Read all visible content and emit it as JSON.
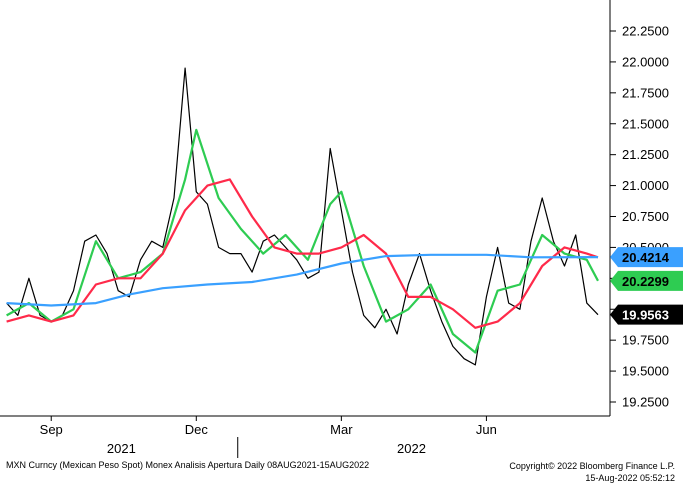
{
  "chart_data": {
    "type": "line",
    "title": "",
    "ylim": [
      19.2,
      22.4
    ],
    "yticks": [
      "22.2500",
      "22.0000",
      "21.7500",
      "21.5000",
      "21.2500",
      "21.0000",
      "20.7500",
      "20.5000",
      "20.2500",
      "20.0000",
      "19.7500",
      "19.5000",
      "19.2500"
    ],
    "ytick_values": [
      22.25,
      22.0,
      21.75,
      21.5,
      21.25,
      21.0,
      20.75,
      20.5,
      20.25,
      20.0,
      19.75,
      19.5,
      19.25
    ],
    "x_range": [
      "2021-08-08",
      "2022-08-15"
    ],
    "month_labels": [
      {
        "label": "Sep",
        "date": "2021-09-06"
      },
      {
        "label": "Dec",
        "date": "2021-12-06"
      },
      {
        "label": "Mar",
        "date": "2022-03-07"
      },
      {
        "label": "Jun",
        "date": "2022-06-06"
      }
    ],
    "year_labels": [
      {
        "label": "2021",
        "date": "2021-10-20"
      },
      {
        "label": "2022",
        "date": "2022-04-20"
      }
    ],
    "year_divider_date": "2022-01-01",
    "series": [
      {
        "color": "#000000",
        "values": [
          [
            "2021-08-09",
            20.05
          ],
          [
            "2021-08-16",
            19.95
          ],
          [
            "2021-08-23",
            20.25
          ],
          [
            "2021-08-30",
            19.95
          ],
          [
            "2021-09-06",
            19.9
          ],
          [
            "2021-09-13",
            19.95
          ],
          [
            "2021-09-20",
            20.15
          ],
          [
            "2021-09-27",
            20.55
          ],
          [
            "2021-10-04",
            20.6
          ],
          [
            "2021-10-11",
            20.45
          ],
          [
            "2021-10-18",
            20.15
          ],
          [
            "2021-10-25",
            20.1
          ],
          [
            "2021-11-01",
            20.4
          ],
          [
            "2021-11-08",
            20.55
          ],
          [
            "2021-11-15",
            20.5
          ],
          [
            "2021-11-22",
            20.9
          ],
          [
            "2021-11-29",
            21.95
          ],
          [
            "2021-12-06",
            20.95
          ],
          [
            "2021-12-13",
            20.85
          ],
          [
            "2021-12-20",
            20.5
          ],
          [
            "2021-12-27",
            20.45
          ],
          [
            "2022-01-03",
            20.45
          ],
          [
            "2022-01-10",
            20.3
          ],
          [
            "2022-01-17",
            20.55
          ],
          [
            "2022-01-24",
            20.6
          ],
          [
            "2022-01-31",
            20.5
          ],
          [
            "2022-02-07",
            20.4
          ],
          [
            "2022-02-14",
            20.25
          ],
          [
            "2022-02-21",
            20.3
          ],
          [
            "2022-02-28",
            21.3
          ],
          [
            "2022-03-07",
            20.8
          ],
          [
            "2022-03-14",
            20.3
          ],
          [
            "2022-03-21",
            19.95
          ],
          [
            "2022-03-28",
            19.85
          ],
          [
            "2022-04-04",
            20.0
          ],
          [
            "2022-04-11",
            19.8
          ],
          [
            "2022-04-18",
            20.2
          ],
          [
            "2022-04-25",
            20.45
          ],
          [
            "2022-05-02",
            20.15
          ],
          [
            "2022-05-09",
            19.9
          ],
          [
            "2022-05-16",
            19.7
          ],
          [
            "2022-05-23",
            19.6
          ],
          [
            "2022-05-30",
            19.55
          ],
          [
            "2022-06-06",
            20.1
          ],
          [
            "2022-06-13",
            20.5
          ],
          [
            "2022-06-20",
            20.05
          ],
          [
            "2022-06-27",
            20.0
          ],
          [
            "2022-07-04",
            20.55
          ],
          [
            "2022-07-11",
            20.9
          ],
          [
            "2022-07-18",
            20.55
          ],
          [
            "2022-07-25",
            20.35
          ],
          [
            "2022-08-01",
            20.6
          ],
          [
            "2022-08-08",
            20.05
          ],
          [
            "2022-08-15",
            19.9563
          ]
        ]
      },
      {
        "color": "#2ecc52",
        "values": [
          [
            "2021-08-09",
            19.95
          ],
          [
            "2021-08-23",
            20.05
          ],
          [
            "2021-09-06",
            19.9
          ],
          [
            "2021-09-20",
            20.0
          ],
          [
            "2021-10-04",
            20.55
          ],
          [
            "2021-10-18",
            20.25
          ],
          [
            "2021-11-01",
            20.3
          ],
          [
            "2021-11-15",
            20.45
          ],
          [
            "2021-11-29",
            21.05
          ],
          [
            "2021-12-06",
            21.45
          ],
          [
            "2021-12-20",
            20.9
          ],
          [
            "2022-01-03",
            20.65
          ],
          [
            "2022-01-17",
            20.45
          ],
          [
            "2022-01-31",
            20.6
          ],
          [
            "2022-02-14",
            20.4
          ],
          [
            "2022-02-28",
            20.85
          ],
          [
            "2022-03-07",
            20.95
          ],
          [
            "2022-03-21",
            20.35
          ],
          [
            "2022-04-04",
            19.9
          ],
          [
            "2022-04-18",
            20.0
          ],
          [
            "2022-05-02",
            20.2
          ],
          [
            "2022-05-16",
            19.8
          ],
          [
            "2022-05-30",
            19.65
          ],
          [
            "2022-06-13",
            20.15
          ],
          [
            "2022-06-27",
            20.2
          ],
          [
            "2022-07-11",
            20.6
          ],
          [
            "2022-07-25",
            20.45
          ],
          [
            "2022-08-08",
            20.4
          ],
          [
            "2022-08-15",
            20.2299
          ]
        ]
      },
      {
        "color": "#ff2a4a",
        "values": [
          [
            "2021-08-09",
            19.9
          ],
          [
            "2021-08-23",
            19.95
          ],
          [
            "2021-09-06",
            19.9
          ],
          [
            "2021-09-20",
            19.95
          ],
          [
            "2021-10-04",
            20.2
          ],
          [
            "2021-10-18",
            20.25
          ],
          [
            "2021-11-01",
            20.25
          ],
          [
            "2021-11-15",
            20.45
          ],
          [
            "2021-11-29",
            20.8
          ],
          [
            "2021-12-13",
            21.0
          ],
          [
            "2021-12-27",
            21.05
          ],
          [
            "2022-01-10",
            20.75
          ],
          [
            "2022-01-24",
            20.5
          ],
          [
            "2022-02-07",
            20.45
          ],
          [
            "2022-02-21",
            20.45
          ],
          [
            "2022-03-07",
            20.5
          ],
          [
            "2022-03-21",
            20.6
          ],
          [
            "2022-04-04",
            20.45
          ],
          [
            "2022-04-18",
            20.1
          ],
          [
            "2022-05-02",
            20.1
          ],
          [
            "2022-05-16",
            20.0
          ],
          [
            "2022-05-30",
            19.85
          ],
          [
            "2022-06-13",
            19.9
          ],
          [
            "2022-06-27",
            20.05
          ],
          [
            "2022-07-11",
            20.35
          ],
          [
            "2022-07-25",
            20.5
          ],
          [
            "2022-08-08",
            20.45
          ],
          [
            "2022-08-15",
            20.42
          ]
        ]
      },
      {
        "color": "#3aa0ff",
        "values": [
          [
            "2021-08-09",
            20.05
          ],
          [
            "2021-09-06",
            20.03
          ],
          [
            "2021-10-04",
            20.05
          ],
          [
            "2021-10-25",
            20.12
          ],
          [
            "2021-11-15",
            20.17
          ],
          [
            "2021-12-13",
            20.2
          ],
          [
            "2022-01-10",
            20.22
          ],
          [
            "2022-02-07",
            20.28
          ],
          [
            "2022-03-07",
            20.37
          ],
          [
            "2022-04-04",
            20.43
          ],
          [
            "2022-05-02",
            20.44
          ],
          [
            "2022-06-06",
            20.44
          ],
          [
            "2022-07-04",
            20.42
          ],
          [
            "2022-08-15",
            20.4214
          ]
        ]
      }
    ],
    "value_tags": [
      {
        "label": "20.4214",
        "value": 20.4214,
        "bg": "#3aa0ff",
        "fg": "#000000"
      },
      {
        "label": "20.2299",
        "value": 20.2299,
        "bg": "#2ecc52",
        "fg": "#000000"
      },
      {
        "label": "19.9563",
        "value": 19.9563,
        "bg": "#000000",
        "fg": "#ffffff"
      }
    ]
  },
  "footer": {
    "left": "MXN Curncy (Mexican Peso Spot) Monex Analisis Apertura  Daily 08AUG2021-15AUG2022",
    "right_line1": "Copyright© 2022 Bloomberg Finance L.P.",
    "right_line2": "15-Aug-2022 05:52:12"
  }
}
